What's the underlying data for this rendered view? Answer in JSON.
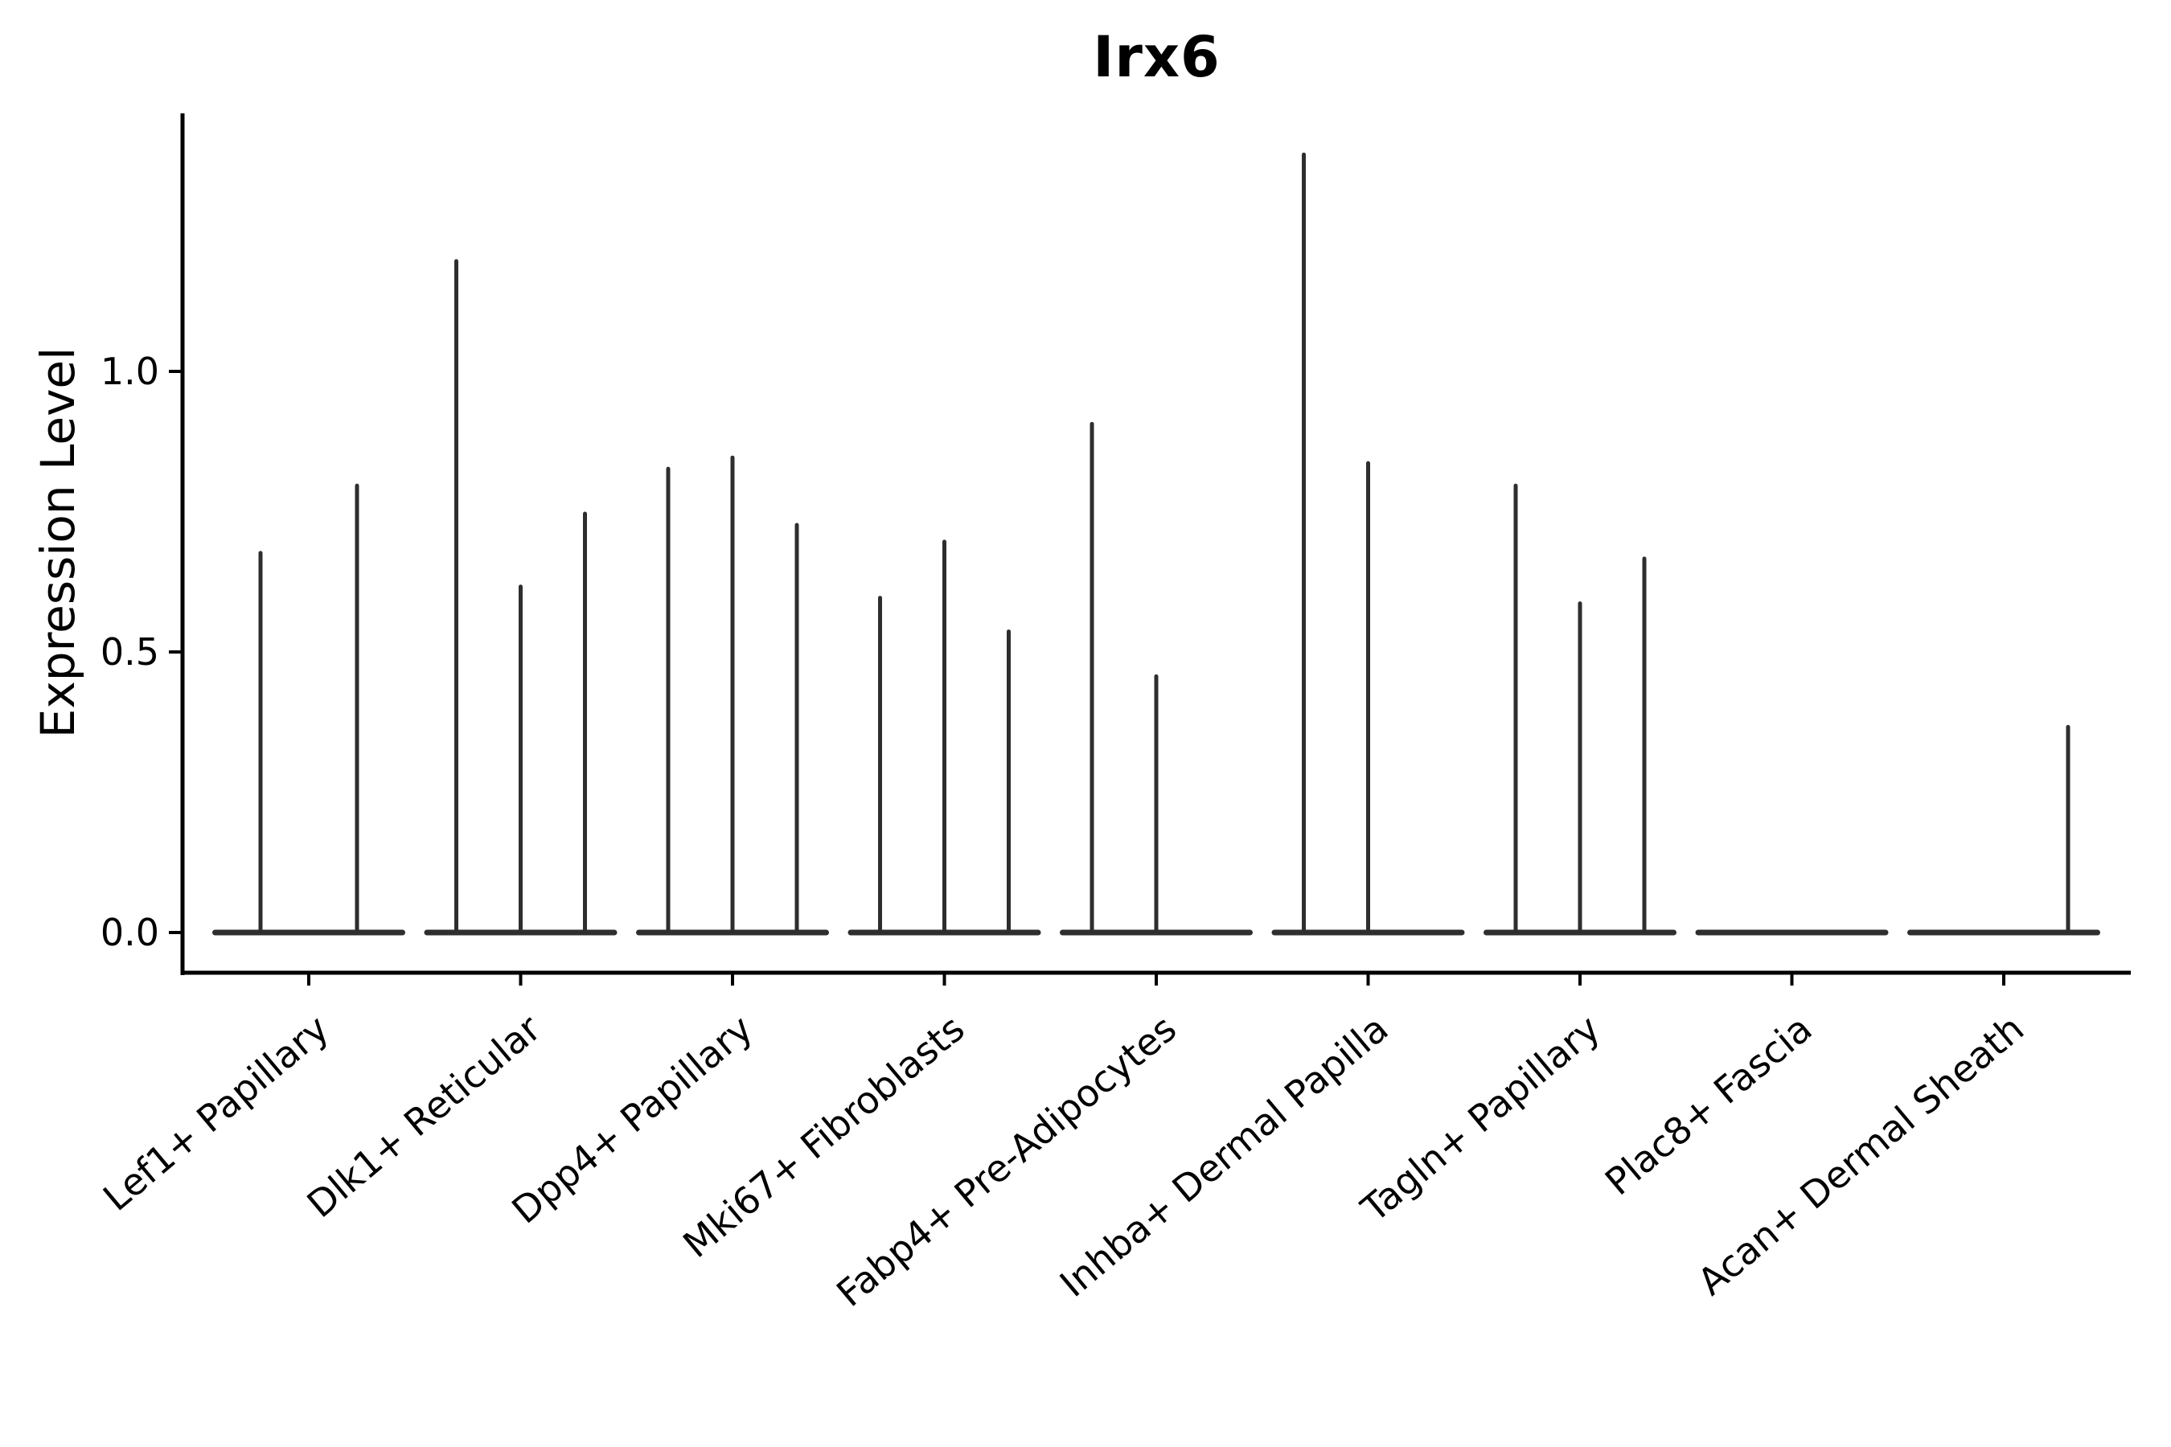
{
  "figure": {
    "title": "Irx6",
    "y_axis_label": "Expression Level"
  },
  "chart_data": {
    "type": "violin",
    "title": "Irx6",
    "xlabel": "",
    "ylabel": "Expression Level",
    "ytick_labels": [
      "0.0",
      "0.5",
      "1.0"
    ],
    "ytick_values": [
      0.0,
      0.5,
      1.0
    ],
    "ylim": [
      -0.076,
      1.46
    ],
    "grid": false,
    "legend": "none",
    "description": "Violin plot of Irx6 expression; most cells are at 0 so each violin is a flat body at 0 with a single thin density spike up to its maximum expression value. Each category contains 2-3 adjacent violins.",
    "categories": [
      "Lef1+ Papillary",
      "Dlk1+ Reticular",
      "Dpp4+ Papillary",
      "Mki67+ Fibroblasts",
      "Fabp4+ Pre-Adipocytes",
      "Inhba+ Dermal Papilla",
      "Tagln+ Papillary",
      "Plac8+ Fascia",
      "Acan+ Dermal Sheath"
    ],
    "violins": [
      {
        "category": "Lef1+ Papillary",
        "spike_max_values": [
          0.68,
          0.8
        ]
      },
      {
        "category": "Dlk1+ Reticular",
        "spike_max_values": [
          1.2,
          0.62,
          0.75
        ]
      },
      {
        "category": "Dpp4+ Papillary",
        "spike_max_values": [
          0.83,
          0.85,
          0.73
        ]
      },
      {
        "category": "Mki67+ Fibroblasts",
        "spike_max_values": [
          0.6,
          0.7,
          0.54
        ]
      },
      {
        "category": "Fabp4+ Pre-Adipocytes",
        "spike_max_values": [
          0.91,
          0.46,
          0.0
        ]
      },
      {
        "category": "Inhba+ Dermal Papilla",
        "spike_max_values": [
          1.39,
          0.84,
          0.0
        ]
      },
      {
        "category": "Tagln+ Papillary",
        "spike_max_values": [
          0.8,
          0.59,
          0.67
        ]
      },
      {
        "category": "Plac8+ Fascia",
        "spike_max_values": [
          0.0,
          0.0,
          0.0
        ]
      },
      {
        "category": "Acan+ Dermal Sheath",
        "spike_max_values": [
          0.0,
          0.0,
          0.37
        ]
      }
    ],
    "xtick_label_rotation_deg": 40,
    "colors": {
      "violin": "#2e2e2e",
      "axis": "#000000",
      "text": "#000000",
      "background": "#ffffff"
    }
  }
}
